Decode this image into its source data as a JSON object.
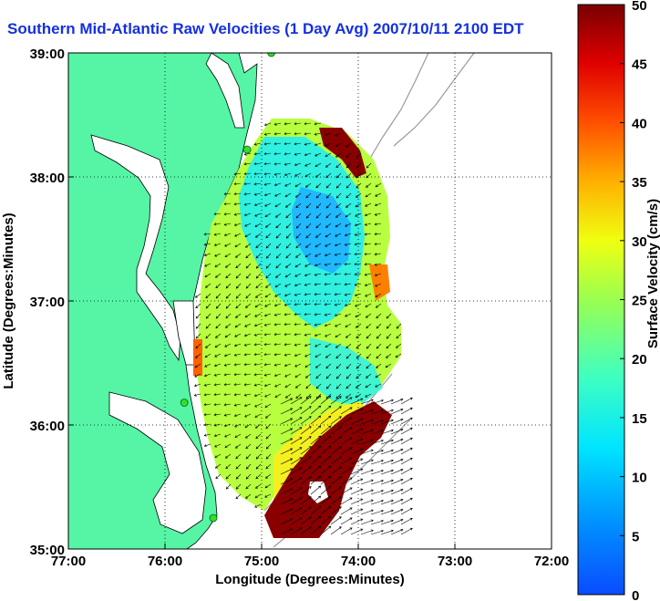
{
  "chart_data": {
    "type": "heatmap",
    "title": "Southern Mid-Atlantic Raw Velocities (1 Day Avg) 2007/10/11 2100 EDT",
    "xlabel": "Longitude (Degrees:Minutes)",
    "ylabel": "Latitude (Degrees:Minutes)",
    "x_ticks": [
      {
        "value": -77,
        "label": "77:00"
      },
      {
        "value": -76,
        "label": "76:00"
      },
      {
        "value": -75,
        "label": "75:00"
      },
      {
        "value": -74,
        "label": "74:00"
      },
      {
        "value": -73,
        "label": "73:00"
      },
      {
        "value": -72,
        "label": "72:00"
      }
    ],
    "y_ticks": [
      {
        "value": 35,
        "label": "35:00"
      },
      {
        "value": 36,
        "label": "36:00"
      },
      {
        "value": 37,
        "label": "37:00"
      },
      {
        "value": 38,
        "label": "38:00"
      },
      {
        "value": 39,
        "label": "39:00"
      }
    ],
    "xlim": [
      -77,
      -72
    ],
    "ylim": [
      35,
      39
    ],
    "grid": true,
    "colorbar": {
      "label": "Surface Velocity (cm/s)",
      "min": 0,
      "max": 50,
      "ticks": [
        {
          "value": 0,
          "label": "0"
        },
        {
          "value": 5,
          "label": "5"
        },
        {
          "value": 10,
          "label": "10"
        },
        {
          "value": 15,
          "label": "15"
        },
        {
          "value": 20,
          "label": "20"
        },
        {
          "value": 25,
          "label": "25"
        },
        {
          "value": 30,
          "label": "30"
        },
        {
          "value": 35,
          "label": "35"
        },
        {
          "value": 40,
          "label": "40"
        },
        {
          "value": 45,
          "label": "45"
        },
        {
          "value": 50,
          "label": "50"
        }
      ]
    },
    "colors": {
      "land": "#55f5a5",
      "coastline": "#000000",
      "bathymetry": "#9a9a9a",
      "title": "#1530e0",
      "station_marker": "#33dd33",
      "grid": "#000000"
    },
    "stations": [
      {
        "lon": -74.9,
        "lat": 39.0
      },
      {
        "lon": -75.15,
        "lat": 38.22
      },
      {
        "lon": -75.8,
        "lat": 36.18
      },
      {
        "lon": -75.5,
        "lat": 35.25
      }
    ],
    "field_notes": "Velocity field (arrows) over offshore domain; high speeds (~45-50 cm/s) near shelf break in south-east, low speeds (~5-12 cm/s) in central-north offshore region."
  }
}
